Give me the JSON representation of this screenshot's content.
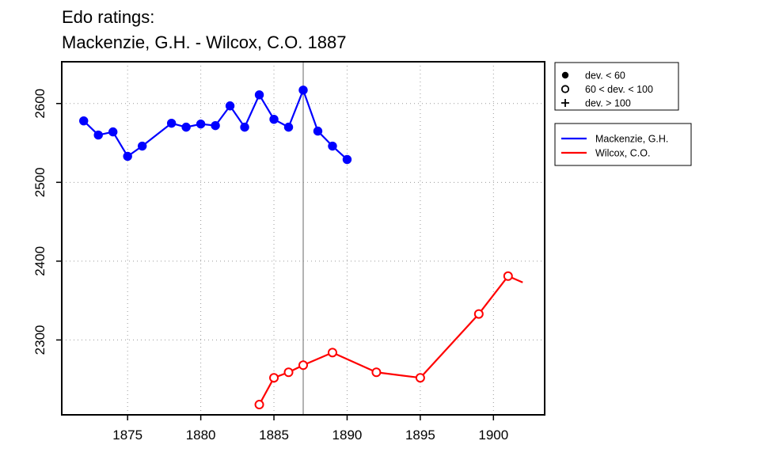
{
  "chart_data": {
    "type": "line",
    "title_line1": "Edo ratings:",
    "title_line2": "Mackenzie, G.H. - Wilcox, C.O. 1887",
    "xlabel": "",
    "ylabel": "",
    "xlim": [
      1870.5,
      1903.5
    ],
    "ylim": [
      2205,
      2653
    ],
    "xticks": [
      1875,
      1880,
      1885,
      1890,
      1895,
      1900
    ],
    "yticks": [
      2300,
      2400,
      2500,
      2600
    ],
    "grid": true,
    "reference_line_x": 1887,
    "series": [
      {
        "name": "Mackenzie, G.H.",
        "color": "#0000ff",
        "marker": "filled-circle",
        "points": [
          [
            1872,
            2578
          ],
          [
            1873,
            2560
          ],
          [
            1874,
            2564
          ],
          [
            1875,
            2533
          ],
          [
            1876,
            2546
          ],
          [
            1878,
            2575
          ],
          [
            1879,
            2570
          ],
          [
            1880,
            2574
          ],
          [
            1881,
            2572
          ],
          [
            1882,
            2597
          ],
          [
            1883,
            2570
          ],
          [
            1884,
            2611
          ],
          [
            1885,
            2580
          ],
          [
            1886,
            2570
          ],
          [
            1887,
            2617
          ],
          [
            1888,
            2565
          ],
          [
            1889,
            2546
          ],
          [
            1890,
            2529
          ]
        ]
      },
      {
        "name": "Wilcox, C.O.",
        "color": "#ff0000",
        "marker": "open-circle",
        "points": [
          [
            1884,
            2218
          ],
          [
            1885,
            2252
          ],
          [
            1886,
            2259
          ],
          [
            1887,
            2268
          ],
          [
            1889,
            2284
          ],
          [
            1892,
            2259
          ],
          [
            1895,
            2252
          ],
          [
            1899,
            2333
          ],
          [
            1901,
            2381
          ]
        ],
        "tail": [
          1902,
          2373
        ]
      }
    ],
    "marker_legend": [
      {
        "symbol": "filled-circle",
        "label": "dev. < 60"
      },
      {
        "symbol": "open-circle",
        "label": "60 < dev. < 100"
      },
      {
        "symbol": "plus",
        "label": "dev. > 100"
      }
    ],
    "legend_position": "right-top"
  }
}
